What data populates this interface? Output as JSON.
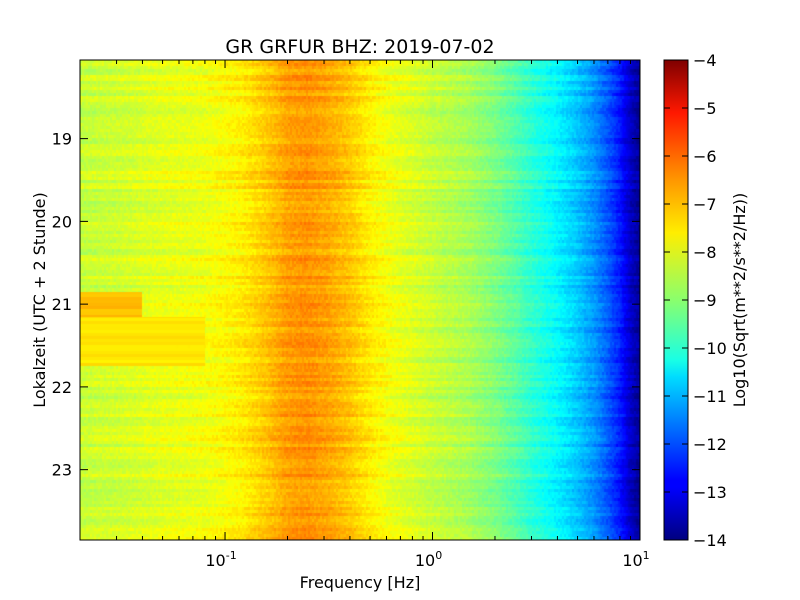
{
  "chart_data": {
    "type": "heatmap",
    "title": "GR GRFUR BHZ: 2019-07-02",
    "xlabel": "Frequency [Hz]",
    "ylabel": "Lokalzeit (UTC + 2 Stunde)",
    "x_scale": "log",
    "xlim": [
      0.02,
      10
    ],
    "ylim": [
      18.05,
      23.85
    ],
    "y_inverted": true,
    "x_ticks": [
      {
        "value": 0.1,
        "base": "10",
        "exp": "-1"
      },
      {
        "value": 1,
        "base": "10",
        "exp": "0"
      },
      {
        "value": 10,
        "base": "10",
        "exp": "1"
      }
    ],
    "y_ticks": [
      {
        "value": 19,
        "label": "19"
      },
      {
        "value": 20,
        "label": "20"
      },
      {
        "value": 21,
        "label": "21"
      },
      {
        "value": 22,
        "label": "22"
      },
      {
        "value": 23,
        "label": "23"
      }
    ],
    "colorbar": {
      "label": "Log10(Sqrt(m**2/s**2/Hz))",
      "range": [
        -14,
        -4
      ],
      "colormap": "jet",
      "ticks": [
        {
          "value": -4,
          "label": "−4"
        },
        {
          "value": -5,
          "label": "−5"
        },
        {
          "value": -6,
          "label": "−6"
        },
        {
          "value": -7,
          "label": "−7"
        },
        {
          "value": -8,
          "label": "−8"
        },
        {
          "value": -9,
          "label": "−9"
        },
        {
          "value": -10,
          "label": "−10"
        },
        {
          "value": -11,
          "label": "−11"
        },
        {
          "value": -12,
          "label": "−12"
        },
        {
          "value": -13,
          "label": "−13"
        },
        {
          "value": -14,
          "label": "−14"
        }
      ]
    },
    "spectrum_profile": {
      "frequency_hz": [
        0.02,
        0.03,
        0.05,
        0.08,
        0.12,
        0.16,
        0.2,
        0.25,
        0.32,
        0.4,
        0.5,
        0.63,
        0.8,
        1.0,
        1.5,
        2.0,
        2.5,
        3.0,
        4.0,
        5.0,
        6.0,
        7.0,
        8.0,
        9.0,
        10.0
      ],
      "level": [
        -8.3,
        -8.2,
        -8.0,
        -7.9,
        -7.6,
        -7.2,
        -6.8,
        -6.7,
        -6.9,
        -7.2,
        -7.6,
        -7.9,
        -8.1,
        -8.3,
        -8.6,
        -9.0,
        -9.4,
        -9.8,
        -10.3,
        -10.8,
        -11.3,
        -11.9,
        -12.5,
        -13.3,
        -13.8
      ]
    },
    "notable_features": [
      {
        "time_start": 20.85,
        "time_end": 21.15,
        "freq_max_hz": 0.04,
        "level": -7.1
      },
      {
        "time_start": 21.15,
        "time_end": 21.75,
        "freq_max_hz": 0.08,
        "level": -7.5
      }
    ]
  }
}
